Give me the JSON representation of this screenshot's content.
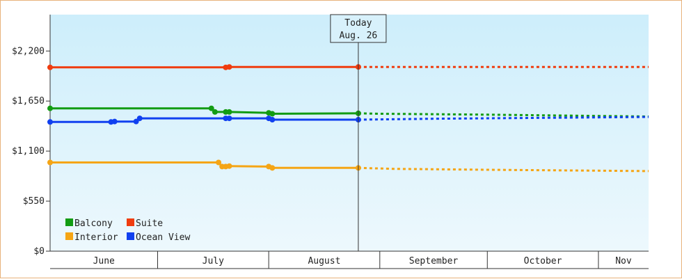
{
  "chart_data": {
    "type": "line",
    "title": "",
    "xlabel": "",
    "ylabel": "",
    "ylim": [
      0,
      2600
    ],
    "y_ticks": [
      "$0",
      "$550",
      "$1,100",
      "$1,650",
      "$2,200"
    ],
    "y_tick_values": [
      0,
      550,
      1100,
      1650,
      2200
    ],
    "x_range": [
      "2024-06-01",
      "2024-11-15"
    ],
    "month_labels": [
      "June",
      "July",
      "August",
      "September",
      "October",
      "Nov"
    ],
    "month_starts": [
      "2024-06-01",
      "2024-07-01",
      "2024-08-01",
      "2024-09-01",
      "2024-10-01",
      "2024-11-01"
    ],
    "today": {
      "label": "Today",
      "date_label": "Aug. 26",
      "date": "2024-08-26"
    },
    "grid": false,
    "legend_position": "bottom-left",
    "series": [
      {
        "name": "Suite",
        "color": "#f03c0f",
        "points": [
          [
            "2024-06-01",
            2020
          ],
          [
            "2024-07-20",
            2020
          ],
          [
            "2024-07-21",
            2025
          ],
          [
            "2024-08-26",
            2025
          ]
        ],
        "forecast": [
          [
            "2024-08-26",
            2025
          ],
          [
            "2024-11-15",
            2025
          ]
        ]
      },
      {
        "name": "Balcony",
        "color": "#139c13",
        "points": [
          [
            "2024-06-01",
            1570
          ],
          [
            "2024-07-16",
            1570
          ],
          [
            "2024-07-17",
            1530
          ],
          [
            "2024-07-20",
            1530
          ],
          [
            "2024-07-21",
            1530
          ],
          [
            "2024-08-01",
            1520
          ],
          [
            "2024-08-02",
            1510
          ],
          [
            "2024-08-26",
            1515
          ]
        ],
        "forecast": [
          [
            "2024-08-26",
            1515
          ],
          [
            "2024-09-01",
            1510
          ],
          [
            "2024-10-01",
            1500
          ],
          [
            "2024-11-15",
            1480
          ]
        ]
      },
      {
        "name": "Ocean View",
        "color": "#1040f0",
        "points": [
          [
            "2024-06-01",
            1420
          ],
          [
            "2024-06-18",
            1420
          ],
          [
            "2024-06-19",
            1425
          ],
          [
            "2024-06-25",
            1425
          ],
          [
            "2024-06-26",
            1460
          ],
          [
            "2024-07-20",
            1460
          ],
          [
            "2024-07-21",
            1460
          ],
          [
            "2024-08-01",
            1460
          ],
          [
            "2024-08-02",
            1445
          ],
          [
            "2024-08-26",
            1445
          ]
        ],
        "forecast": [
          [
            "2024-08-26",
            1445
          ],
          [
            "2024-09-15",
            1455
          ],
          [
            "2024-11-15",
            1475
          ]
        ]
      },
      {
        "name": "Interior",
        "color": "#f5a515",
        "points": [
          [
            "2024-06-01",
            975
          ],
          [
            "2024-07-18",
            975
          ],
          [
            "2024-07-19",
            930
          ],
          [
            "2024-07-20",
            930
          ],
          [
            "2024-07-21",
            935
          ],
          [
            "2024-08-01",
            930
          ],
          [
            "2024-08-02",
            915
          ],
          [
            "2024-08-26",
            915
          ]
        ],
        "forecast": [
          [
            "2024-08-26",
            915
          ],
          [
            "2024-09-05",
            905
          ],
          [
            "2024-10-01",
            895
          ],
          [
            "2024-11-15",
            880
          ]
        ]
      }
    ]
  },
  "legend": [
    {
      "name": "Balcony",
      "color": "#139c13"
    },
    {
      "name": "Suite",
      "color": "#f03c0f"
    },
    {
      "name": "Interior",
      "color": "#f5a515"
    },
    {
      "name": "Ocean View",
      "color": "#1040f0"
    }
  ]
}
